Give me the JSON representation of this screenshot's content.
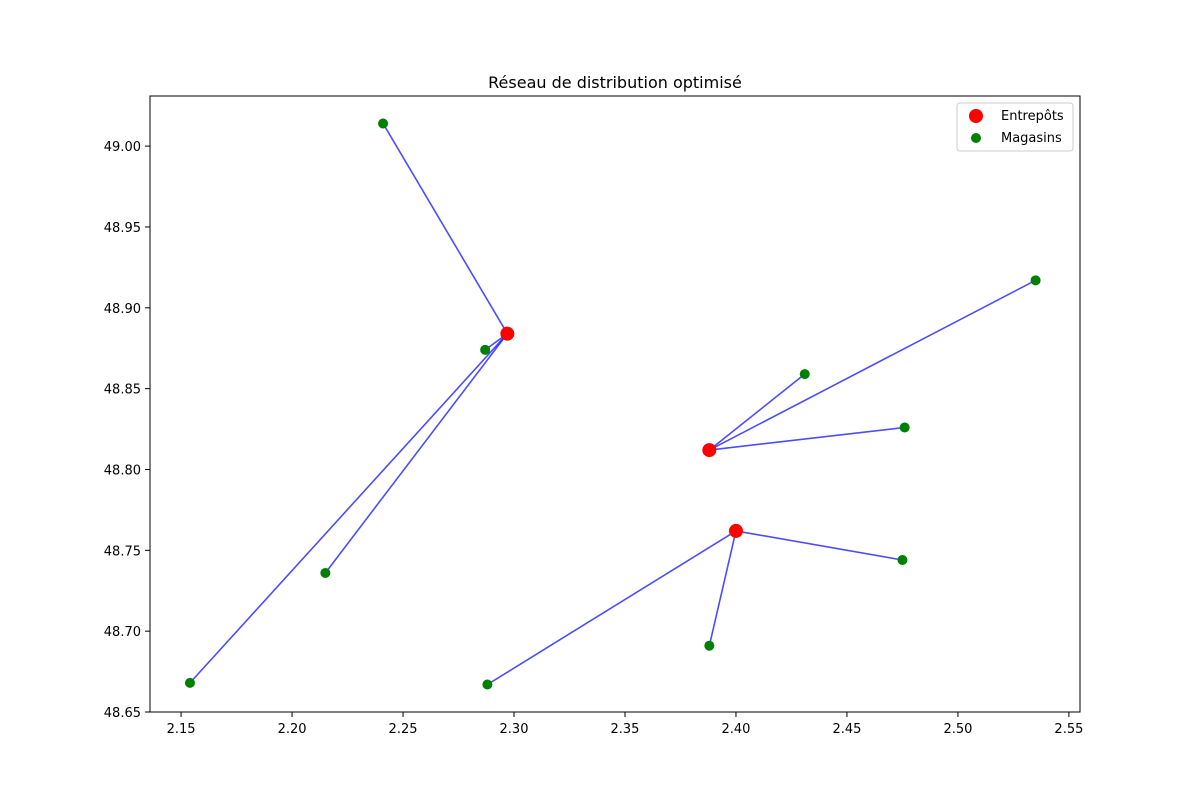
{
  "chart_data": {
    "type": "scatter",
    "title": "Réseau de distribution optimisé",
    "xlabel": "",
    "ylabel": "",
    "xlim": [
      2.136,
      2.555
    ],
    "ylim": [
      48.65,
      49.031
    ],
    "xticks": [
      2.15,
      2.2,
      2.25,
      2.3,
      2.35,
      2.4,
      2.45,
      2.5,
      2.55
    ],
    "xtick_labels": [
      "2.15",
      "2.20",
      "2.25",
      "2.30",
      "2.35",
      "2.40",
      "2.45",
      "2.50",
      "2.55"
    ],
    "yticks": [
      48.65,
      48.7,
      48.75,
      48.8,
      48.85,
      48.9,
      48.95,
      49.0
    ],
    "ytick_labels": [
      "48.65",
      "48.70",
      "48.75",
      "48.80",
      "48.85",
      "48.90",
      "48.95",
      "49.00"
    ],
    "grid": false,
    "legend_position": "top-right",
    "series": [
      {
        "name": "Entrepôts",
        "color": "#ff0000",
        "points": [
          {
            "x": 2.297,
            "y": 48.884
          },
          {
            "x": 2.388,
            "y": 48.812
          },
          {
            "x": 2.4,
            "y": 48.762
          }
        ]
      },
      {
        "name": "Magasins",
        "color": "#008000",
        "points": [
          {
            "x": 2.241,
            "y": 49.014
          },
          {
            "x": 2.287,
            "y": 48.874
          },
          {
            "x": 2.215,
            "y": 48.736
          },
          {
            "x": 2.154,
            "y": 48.668
          },
          {
            "x": 2.431,
            "y": 48.859
          },
          {
            "x": 2.535,
            "y": 48.917
          },
          {
            "x": 2.476,
            "y": 48.826
          },
          {
            "x": 2.475,
            "y": 48.744
          },
          {
            "x": 2.388,
            "y": 48.691
          },
          {
            "x": 2.288,
            "y": 48.667
          }
        ]
      }
    ],
    "connections": [
      {
        "warehouse": 0,
        "store": 0
      },
      {
        "warehouse": 0,
        "store": 1
      },
      {
        "warehouse": 0,
        "store": 2
      },
      {
        "warehouse": 0,
        "store": 3
      },
      {
        "warehouse": 1,
        "store": 4
      },
      {
        "warehouse": 1,
        "store": 5
      },
      {
        "warehouse": 1,
        "store": 6
      },
      {
        "warehouse": 2,
        "store": 7
      },
      {
        "warehouse": 2,
        "store": 8
      },
      {
        "warehouse": 2,
        "store": 9
      }
    ],
    "connection_color": "#0000ff"
  }
}
